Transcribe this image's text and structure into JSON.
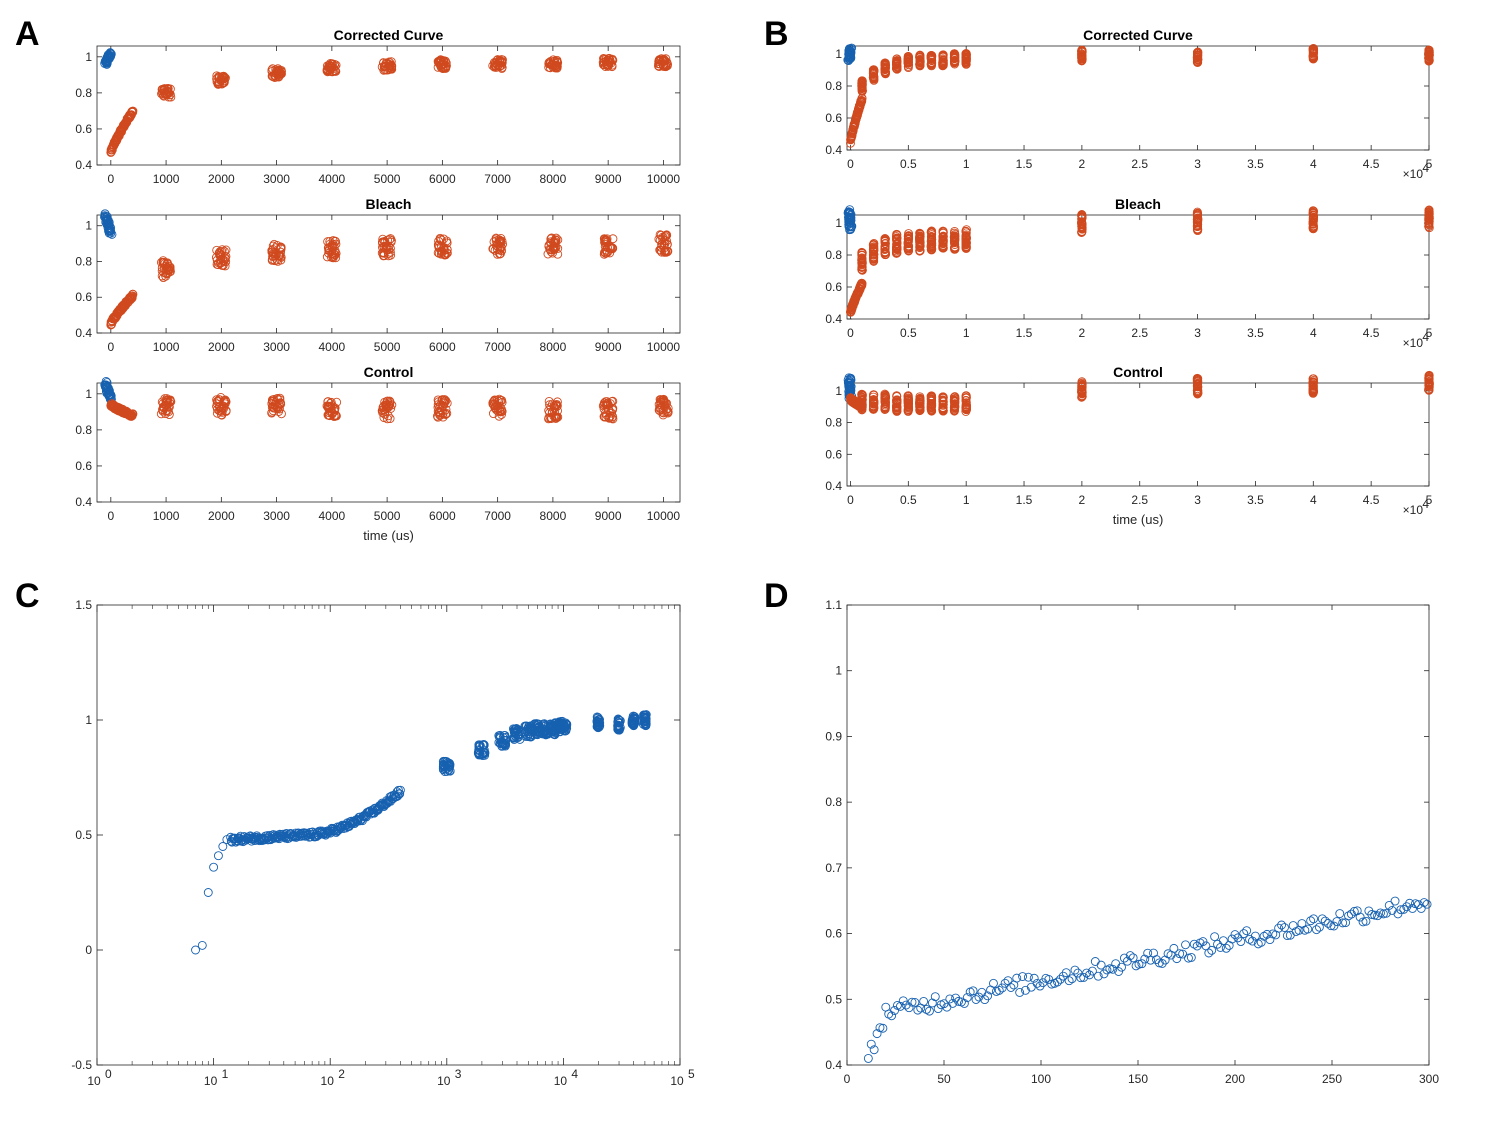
{
  "panels": [
    {
      "letter": "A"
    },
    {
      "letter": "B"
    },
    {
      "letter": "C"
    },
    {
      "letter": "D"
    }
  ],
  "chart_data": [
    {
      "panel": "A",
      "type": "scatter",
      "title": "Corrected Curve",
      "xlabel": "",
      "xlim": [
        -250,
        10300
      ],
      "ylim": [
        0.4,
        1.06
      ],
      "xticks": [
        0,
        1000,
        2000,
        3000,
        4000,
        5000,
        6000,
        7000,
        8000,
        9000,
        10000
      ],
      "yticks": [
        0.4,
        0.6,
        0.8,
        1
      ],
      "blue": {
        "x": [
          -100,
          0
        ],
        "y": [
          0.96,
          1.02
        ]
      },
      "red_ramp": {
        "x": [
          0,
          400
        ],
        "y": [
          0.47,
          0.7
        ]
      },
      "red_clusters": {
        "x": [
          1000,
          2000,
          3000,
          4000,
          5000,
          6000,
          7000,
          8000,
          9000,
          10000
        ],
        "y": [
          0.8,
          0.87,
          0.91,
          0.94,
          0.95,
          0.96,
          0.96,
          0.96,
          0.97,
          0.97
        ],
        "spread": 0.05
      }
    },
    {
      "panel": "A",
      "type": "scatter",
      "title": "Bleach",
      "xlabel": "",
      "xlim": [
        -250,
        10300
      ],
      "ylim": [
        0.4,
        1.06
      ],
      "xticks": [
        0,
        1000,
        2000,
        3000,
        4000,
        5000,
        6000,
        7000,
        8000,
        9000,
        10000
      ],
      "yticks": [
        0.4,
        0.6,
        0.8,
        1
      ],
      "blue": {
        "x": [
          -100,
          0
        ],
        "y": [
          1.06,
          0.96
        ]
      },
      "red_ramp": {
        "x": [
          0,
          400
        ],
        "y": [
          0.45,
          0.61
        ]
      },
      "red_clusters": {
        "x": [
          1000,
          2000,
          3000,
          4000,
          5000,
          6000,
          7000,
          8000,
          9000,
          10000
        ],
        "y": [
          0.76,
          0.82,
          0.85,
          0.87,
          0.88,
          0.88,
          0.89,
          0.89,
          0.89,
          0.9
        ],
        "spread": 0.1
      }
    },
    {
      "panel": "A",
      "type": "scatter",
      "title": "Control",
      "xlabel": "time (us)",
      "xlim": [
        -250,
        10300
      ],
      "ylim": [
        0.4,
        1.06
      ],
      "xticks": [
        0,
        1000,
        2000,
        3000,
        4000,
        5000,
        6000,
        7000,
        8000,
        9000,
        10000
      ],
      "yticks": [
        0.4,
        0.6,
        0.8,
        1
      ],
      "blue": {
        "x": [
          -100,
          0
        ],
        "y": [
          1.06,
          0.97
        ]
      },
      "red_ramp": {
        "x": [
          0,
          400
        ],
        "y": [
          0.94,
          0.88
        ]
      },
      "red_clusters": {
        "x": [
          1000,
          2000,
          3000,
          4000,
          5000,
          6000,
          7000,
          8000,
          9000,
          10000
        ],
        "y": [
          0.93,
          0.93,
          0.93,
          0.92,
          0.91,
          0.92,
          0.92,
          0.91,
          0.91,
          0.92
        ],
        "spread": 0.1
      }
    },
    {
      "panel": "B",
      "type": "scatter",
      "title": "Corrected Curve",
      "xlabel": "",
      "xlim": [
        -300,
        50000
      ],
      "ylim": [
        0.4,
        1.05
      ],
      "xticks": [
        0,
        0.5,
        1,
        1.5,
        2,
        2.5,
        3,
        3.5,
        4,
        4.5,
        5
      ],
      "xtick_multiplier": "×10",
      "xtick_exponent": "4",
      "yticks": [
        0.4,
        0.6,
        0.8,
        1
      ],
      "blue": {
        "x": [
          -100,
          0
        ],
        "y": [
          0.96,
          1.03
        ]
      },
      "red_ramp": {
        "x": [
          0,
          1000
        ],
        "y": [
          0.45,
          0.72
        ]
      },
      "red_clusters": {
        "x": [
          1000,
          2000,
          3000,
          4000,
          5000,
          6000,
          7000,
          8000,
          9000,
          10000,
          20000,
          30000,
          40000,
          50000
        ],
        "y": [
          0.8,
          0.87,
          0.91,
          0.94,
          0.95,
          0.96,
          0.96,
          0.96,
          0.97,
          0.97,
          0.99,
          0.98,
          1.0,
          0.99
        ],
        "spread": 0.07
      }
    },
    {
      "panel": "B",
      "type": "scatter",
      "title": "Bleach",
      "xlabel": "",
      "xlim": [
        -300,
        50000
      ],
      "ylim": [
        0.4,
        1.05
      ],
      "xticks": [
        0,
        0.5,
        1,
        1.5,
        2,
        2.5,
        3,
        3.5,
        4,
        4.5,
        5
      ],
      "xtick_multiplier": "×10",
      "xtick_exponent": "4",
      "yticks": [
        0.4,
        0.6,
        0.8,
        1
      ],
      "blue": {
        "x": [
          -100,
          0
        ],
        "y": [
          1.08,
          0.96
        ]
      },
      "red_ramp": {
        "x": [
          0,
          1000
        ],
        "y": [
          0.44,
          0.62
        ]
      },
      "red_clusters": {
        "x": [
          1000,
          2000,
          3000,
          4000,
          5000,
          6000,
          7000,
          8000,
          9000,
          10000,
          20000,
          30000,
          40000,
          50000
        ],
        "y": [
          0.76,
          0.82,
          0.85,
          0.87,
          0.88,
          0.88,
          0.89,
          0.89,
          0.89,
          0.9,
          1.0,
          1.01,
          1.02,
          1.03
        ],
        "spread": 0.12
      }
    },
    {
      "panel": "B",
      "type": "scatter",
      "title": "Control",
      "xlabel": "time (us)",
      "xlim": [
        -300,
        50000
      ],
      "ylim": [
        0.4,
        1.05
      ],
      "xticks": [
        0,
        0.5,
        1,
        1.5,
        2,
        2.5,
        3,
        3.5,
        4,
        4.5,
        5
      ],
      "xtick_multiplier": "×10",
      "xtick_exponent": "4",
      "yticks": [
        0.4,
        0.6,
        0.8,
        1
      ],
      "blue": {
        "x": [
          -100,
          0
        ],
        "y": [
          1.08,
          0.96
        ]
      },
      "red_ramp": {
        "x": [
          0,
          1000
        ],
        "y": [
          0.95,
          0.9
        ]
      },
      "red_clusters": {
        "x": [
          1000,
          2000,
          3000,
          4000,
          5000,
          6000,
          7000,
          8000,
          9000,
          10000,
          20000,
          30000,
          40000,
          50000
        ],
        "y": [
          0.93,
          0.93,
          0.93,
          0.92,
          0.92,
          0.92,
          0.92,
          0.92,
          0.92,
          0.92,
          1.01,
          1.03,
          1.03,
          1.05
        ],
        "spread": 0.1
      }
    },
    {
      "panel": "C",
      "type": "scatter",
      "title": "",
      "xlabel": "",
      "xscale": "log",
      "xlim": [
        1,
        100000
      ],
      "ylim": [
        -0.5,
        1.5
      ],
      "xtick_base": "10",
      "xtick_exponents": [
        "0",
        "1",
        "2",
        "3",
        "4",
        "5"
      ],
      "yticks": [
        -0.5,
        0,
        0.5,
        1,
        1.5
      ],
      "early_points": [
        [
          7,
          0.0
        ],
        [
          8,
          0.02
        ],
        [
          9,
          0.25
        ],
        [
          10,
          0.36
        ],
        [
          11,
          0.41
        ],
        [
          12,
          0.45
        ],
        [
          13,
          0.48
        ]
      ],
      "ramp": {
        "x": [
          14,
          400
        ],
        "y_start": 0.48,
        "y_mid": 0.5,
        "y_end": 0.69
      },
      "clusters": {
        "x": [
          1000,
          2000,
          3000,
          4000,
          5000,
          6000,
          7000,
          8000,
          9000,
          10000,
          20000,
          30000,
          40000,
          50000
        ],
        "y": [
          0.8,
          0.87,
          0.91,
          0.94,
          0.95,
          0.96,
          0.96,
          0.96,
          0.97,
          0.97,
          0.99,
          0.98,
          1.0,
          1.0
        ]
      }
    },
    {
      "panel": "D",
      "type": "scatter",
      "title": "",
      "xlabel": "",
      "xlim": [
        0,
        300
      ],
      "ylim": [
        0.4,
        1.1
      ],
      "xticks": [
        0,
        50,
        100,
        150,
        200,
        250,
        300
      ],
      "yticks": [
        0.4,
        0.5,
        0.6,
        0.7,
        0.8,
        0.9,
        1,
        1.1
      ],
      "series": {
        "x_start": 11,
        "x_end": 299,
        "x_step": 1.5,
        "y_first": 0.41,
        "y_at_20": 0.48,
        "y_at_300": 0.65
      }
    }
  ]
}
